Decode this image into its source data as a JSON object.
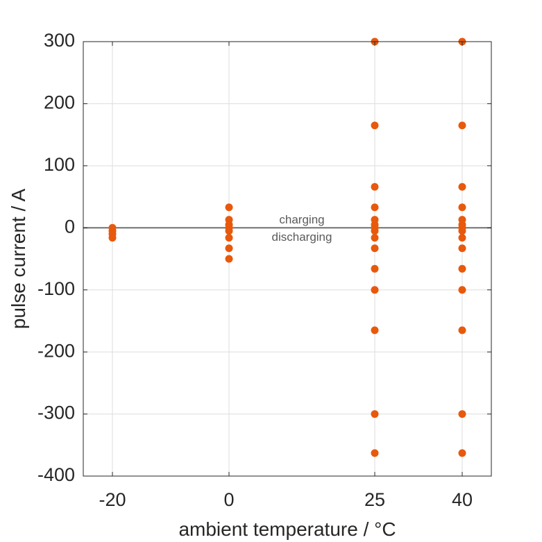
{
  "chart_data": {
    "type": "scatter",
    "title": "",
    "xlabel": "ambient temperature / °C",
    "ylabel": "pulse current / A",
    "x_ticks": [
      -20,
      0,
      25,
      40
    ],
    "x_tick_labels": [
      "-20",
      "0",
      "25",
      "40"
    ],
    "y_ticks": [
      -400,
      -300,
      -200,
      -100,
      0,
      100,
      200,
      300
    ],
    "y_tick_labels": [
      "-400",
      "-300",
      "-200",
      "-100",
      "0",
      "100",
      "200",
      "300"
    ],
    "xlim": [
      -25,
      45
    ],
    "ylim": [
      -400,
      300
    ],
    "grid": true,
    "zero_line": true,
    "annotations": [
      {
        "text": "charging",
        "x": 12.5,
        "y": 12
      },
      {
        "text": "discharging",
        "x": 12.5,
        "y": -16
      }
    ],
    "colors": {
      "points": "#E8590C",
      "zero_line": "#707070",
      "grid": "#DDDDDD",
      "axes": "#262626",
      "annotation": "#5A5A5A"
    },
    "points": [
      {
        "x": -20,
        "y": 0
      },
      {
        "x": -20,
        "y": -5
      },
      {
        "x": -20,
        "y": -10
      },
      {
        "x": -20,
        "y": -16
      },
      {
        "x": 0,
        "y": 33
      },
      {
        "x": 0,
        "y": 13
      },
      {
        "x": 0,
        "y": 5
      },
      {
        "x": 0,
        "y": 0
      },
      {
        "x": 0,
        "y": -5
      },
      {
        "x": 0,
        "y": -16
      },
      {
        "x": 0,
        "y": -33
      },
      {
        "x": 0,
        "y": -50
      },
      {
        "x": 25,
        "y": 300
      },
      {
        "x": 25,
        "y": 165
      },
      {
        "x": 25,
        "y": 66
      },
      {
        "x": 25,
        "y": 33
      },
      {
        "x": 25,
        "y": 13
      },
      {
        "x": 25,
        "y": 5
      },
      {
        "x": 25,
        "y": 0
      },
      {
        "x": 25,
        "y": -5
      },
      {
        "x": 25,
        "y": -16
      },
      {
        "x": 25,
        "y": -33
      },
      {
        "x": 25,
        "y": -66
      },
      {
        "x": 25,
        "y": -100
      },
      {
        "x": 25,
        "y": -165
      },
      {
        "x": 25,
        "y": -300
      },
      {
        "x": 25,
        "y": -363
      },
      {
        "x": 40,
        "y": 300
      },
      {
        "x": 40,
        "y": 165
      },
      {
        "x": 40,
        "y": 66
      },
      {
        "x": 40,
        "y": 33
      },
      {
        "x": 40,
        "y": 13
      },
      {
        "x": 40,
        "y": 5
      },
      {
        "x": 40,
        "y": 0
      },
      {
        "x": 40,
        "y": -5
      },
      {
        "x": 40,
        "y": -16
      },
      {
        "x": 40,
        "y": -33
      },
      {
        "x": 40,
        "y": -66
      },
      {
        "x": 40,
        "y": -100
      },
      {
        "x": 40,
        "y": -165
      },
      {
        "x": 40,
        "y": -300
      },
      {
        "x": 40,
        "y": -363
      }
    ]
  }
}
